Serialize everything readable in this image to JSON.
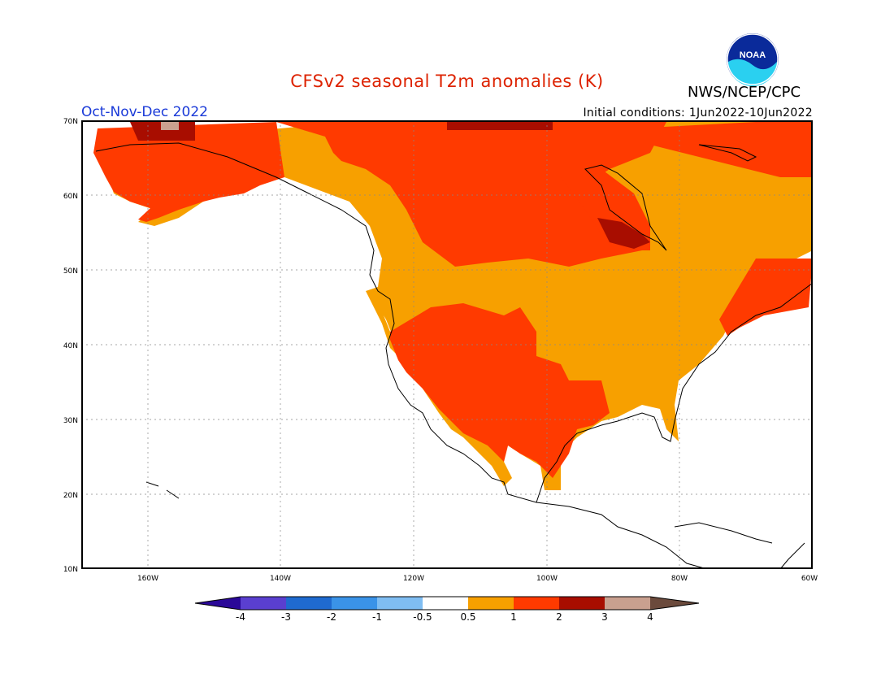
{
  "header": {
    "title": "CFSv2 seasonal T2m anomalies (K)",
    "agency": "NWS/NCEP/CPC",
    "season": "Oct-Nov-Dec 2022",
    "initial_conditions": "Initial conditions: 1Jun2022-10Jun2022",
    "logo_text": "NOAA"
  },
  "colors": {
    "title": "#dd2200",
    "season": "#1a3ad8",
    "c_lt_m4": "#2a0898",
    "c_m4_m3": "#5a3fd0",
    "c_m3_m2": "#1f6ad0",
    "c_m2_m1": "#3a93e8",
    "c_m1_m05": "#7fbdf2",
    "c_neutral": "#ffffff",
    "c_05_1": "#f7a000",
    "c_1_2": "#ff3a00",
    "c_2_3": "#a80d00",
    "c_3_4": "#c9a08f",
    "c_gt_4": "#6b4a3c"
  },
  "axes": {
    "lat_labels": [
      "70N",
      "60N",
      "50N",
      "40N",
      "30N",
      "20N",
      "10N"
    ],
    "lon_labels": [
      "160W",
      "140W",
      "120W",
      "100W",
      "80W",
      "60W"
    ]
  },
  "colorbar": {
    "labels": [
      "-4",
      "-3",
      "-2",
      "-1",
      "-0.5",
      "0.5",
      "1",
      "2",
      "3",
      "4"
    ]
  },
  "chart_data": {
    "type": "heatmap",
    "title": "CFSv2 seasonal T2m anomalies (K)",
    "region_lon": [
      -170,
      -60
    ],
    "region_lat": [
      10,
      70
    ],
    "units": "K",
    "color_levels": [
      -4,
      -3,
      -2,
      -1,
      -0.5,
      0.5,
      1,
      2,
      3,
      4
    ],
    "regions": [
      {
        "name": "Alaska",
        "anomaly": "1 to 2",
        "extremes": "2 to 3 along northern coast, 3 to 4 small patch"
      },
      {
        "name": "Northern Canada / Arctic",
        "anomaly": "1 to 2",
        "extremes": "2 to 3 near Arctic islands"
      },
      {
        "name": "Canadian Prairies",
        "anomaly": "1 to 2"
      },
      {
        "name": "Western Canada / Pacific Northwest",
        "anomaly": "0.5 to 1"
      },
      {
        "name": "Hudson Bay region",
        "anomaly": "0.5 to 1",
        "extremes": "2 to 3 south of Hudson Bay"
      },
      {
        "name": "Quebec / Labrador",
        "anomaly": "0.5 to 1"
      },
      {
        "name": "US Southwest and Rockies",
        "anomaly": "1 to 2"
      },
      {
        "name": "US Great Plains",
        "anomaly": "1 to 2"
      },
      {
        "name": "US Midwest / Great Lakes",
        "anomaly": "0.5 to 1"
      },
      {
        "name": "US Northeast / New England",
        "anomaly": "1 to 2"
      },
      {
        "name": "US Southeast / Florida",
        "anomaly": "0.5 to 1"
      },
      {
        "name": "Northern Mexico",
        "anomaly": "0.5 to 2"
      }
    ]
  }
}
